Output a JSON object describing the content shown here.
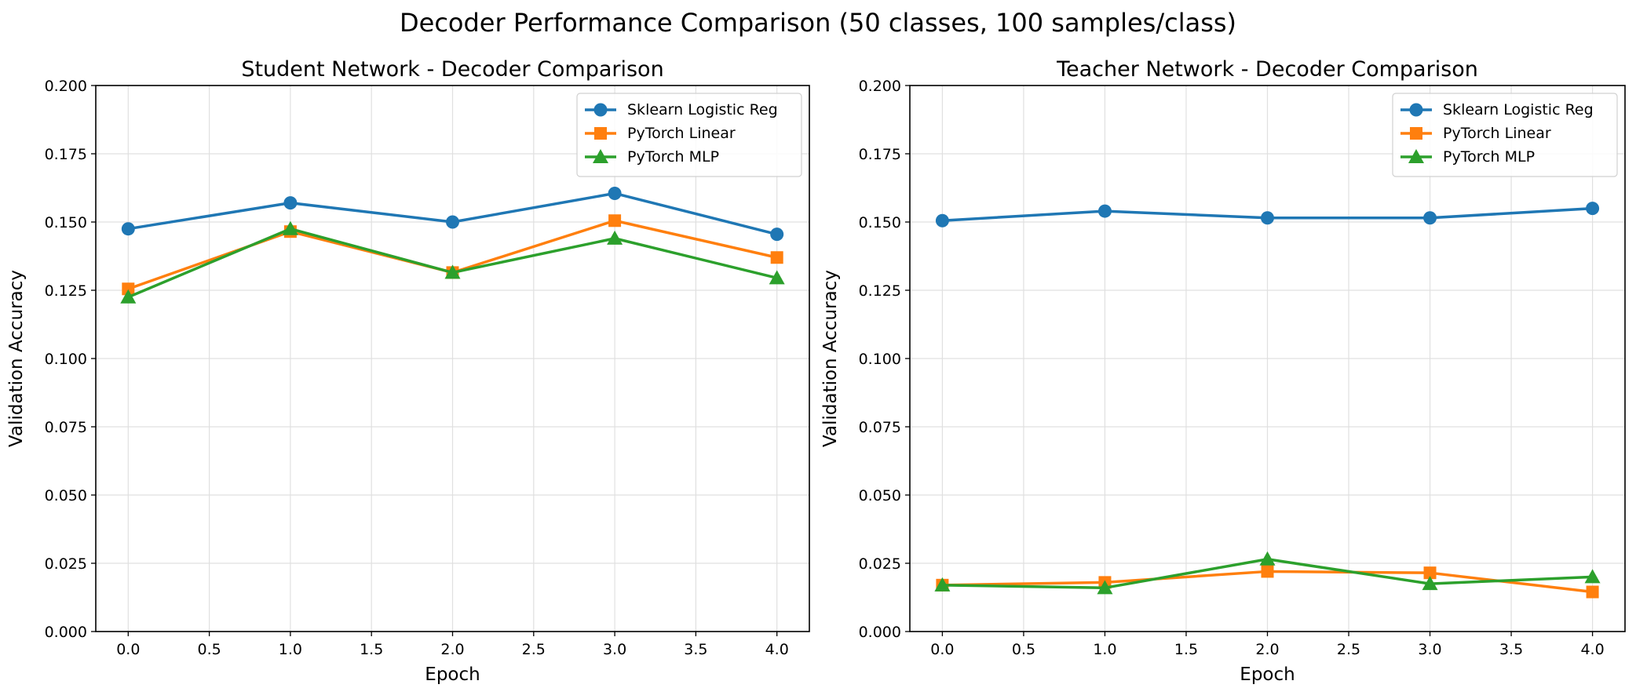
{
  "figure": {
    "title": "Decoder Performance Comparison (50 classes, 100 samples/class)"
  },
  "chart_data": [
    {
      "type": "line",
      "title": "Student Network - Decoder Comparison",
      "xlabel": "Epoch",
      "ylabel": "Validation Accuracy",
      "xlim": [
        -0.2,
        4.2
      ],
      "ylim": [
        0.0,
        0.2
      ],
      "xticks": [
        0.0,
        0.5,
        1.0,
        1.5,
        2.0,
        2.5,
        3.0,
        3.5,
        4.0
      ],
      "xtick_labels": [
        "0.0",
        "0.5",
        "1.0",
        "1.5",
        "2.0",
        "2.5",
        "3.0",
        "3.5",
        "4.0"
      ],
      "yticks": [
        0.0,
        0.025,
        0.05,
        0.075,
        0.1,
        0.125,
        0.15,
        0.175,
        0.2
      ],
      "ytick_labels": [
        "0.000",
        "0.025",
        "0.050",
        "0.075",
        "0.100",
        "0.125",
        "0.150",
        "0.175",
        "0.200"
      ],
      "grid": true,
      "legend_position": "top-right",
      "x": [
        0,
        1,
        2,
        3,
        4
      ],
      "series": [
        {
          "name": "Sklearn Logistic Reg",
          "color": "#1f77b4",
          "marker": "circle",
          "values": [
            0.1475,
            0.157,
            0.15,
            0.1605,
            0.1455
          ]
        },
        {
          "name": "PyTorch Linear",
          "color": "#ff7f0e",
          "marker": "square",
          "values": [
            0.1255,
            0.1465,
            0.1315,
            0.1505,
            0.137
          ]
        },
        {
          "name": "PyTorch MLP",
          "color": "#2ca02c",
          "marker": "triangle",
          "values": [
            0.1225,
            0.1475,
            0.1315,
            0.144,
            0.1295
          ]
        }
      ]
    },
    {
      "type": "line",
      "title": "Teacher Network - Decoder Comparison",
      "xlabel": "Epoch",
      "ylabel": "Validation Accuracy",
      "xlim": [
        -0.2,
        4.2
      ],
      "ylim": [
        0.0,
        0.2
      ],
      "xticks": [
        0.0,
        0.5,
        1.0,
        1.5,
        2.0,
        2.5,
        3.0,
        3.5,
        4.0
      ],
      "xtick_labels": [
        "0.0",
        "0.5",
        "1.0",
        "1.5",
        "2.0",
        "2.5",
        "3.0",
        "3.5",
        "4.0"
      ],
      "yticks": [
        0.0,
        0.025,
        0.05,
        0.075,
        0.1,
        0.125,
        0.15,
        0.175,
        0.2
      ],
      "ytick_labels": [
        "0.000",
        "0.025",
        "0.050",
        "0.075",
        "0.100",
        "0.125",
        "0.150",
        "0.175",
        "0.200"
      ],
      "grid": true,
      "legend_position": "top-right",
      "x": [
        0,
        1,
        2,
        3,
        4
      ],
      "series": [
        {
          "name": "Sklearn Logistic Reg",
          "color": "#1f77b4",
          "marker": "circle",
          "values": [
            0.1505,
            0.154,
            0.1515,
            0.1515,
            0.155
          ]
        },
        {
          "name": "PyTorch Linear",
          "color": "#ff7f0e",
          "marker": "square",
          "values": [
            0.017,
            0.018,
            0.022,
            0.0215,
            0.0145
          ]
        },
        {
          "name": "PyTorch MLP",
          "color": "#2ca02c",
          "marker": "triangle",
          "values": [
            0.017,
            0.016,
            0.0265,
            0.0175,
            0.02
          ]
        }
      ]
    }
  ]
}
